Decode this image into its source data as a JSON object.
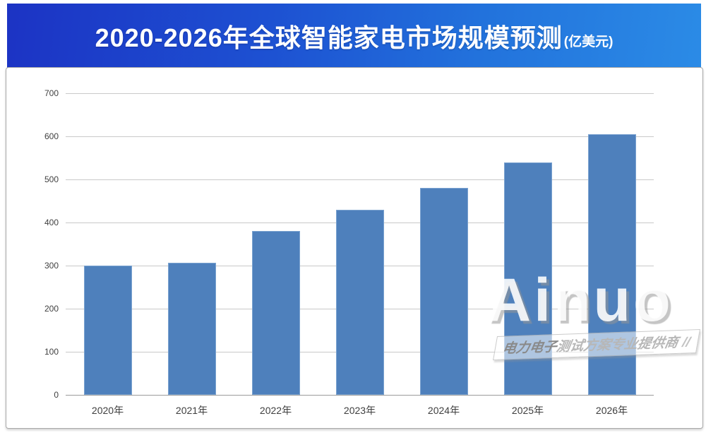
{
  "header": {
    "title": "2020-2026年全球智能家电市场规模预测",
    "unit": "(亿美元)",
    "gradient_left": "#1C33C4",
    "gradient_right": "#2B8BE6"
  },
  "watermark": {
    "brand": "Ainuo",
    "slogan_strong": "电力电子",
    "slogan_rest": "测试方案专业提供商",
    "slashes": "//"
  },
  "chart_data": {
    "type": "bar",
    "title": "2020-2026年全球智能家电市场规模预测(亿美元)",
    "categories": [
      "2020年",
      "2021年",
      "2022年",
      "2023年",
      "2024年",
      "2025年",
      "2026年"
    ],
    "values": [
      300,
      307,
      380,
      430,
      480,
      540,
      605
    ],
    "xlabel": "",
    "ylabel": "",
    "ylim": [
      0,
      700
    ],
    "yticks": [
      0,
      100,
      200,
      300,
      400,
      500,
      600,
      700
    ],
    "grid": true,
    "legend": false,
    "bar_color": "#4E80BC",
    "bar_border_color": "#7BA3D0",
    "gridline_color": "#C9C9C9",
    "axis_line_color": "#9B9B9B",
    "tick_label_color": "#404040"
  }
}
